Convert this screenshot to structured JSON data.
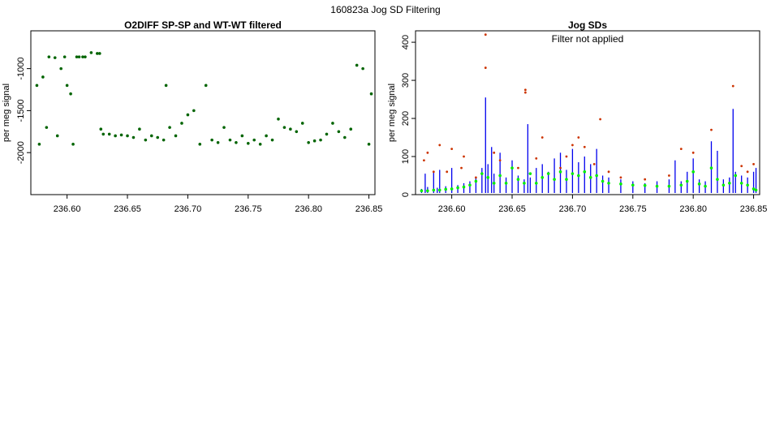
{
  "page": {
    "title": "160823a   Jog SD Filtering"
  },
  "colors": {
    "left_series": "#006400",
    "blue_series": "#0000ee",
    "green_series": "#00ee00",
    "points_series": "#cc3300"
  },
  "chart_data": [
    {
      "type": "scatter",
      "title": "O2DIFF SP-SP and WT-WT filtered",
      "xlabel": "",
      "ylabel": "per meg signal",
      "xlim": [
        236.57,
        236.855
      ],
      "ylim": [
        -2500,
        -550
      ],
      "x_ticks": [
        236.6,
        236.65,
        236.7,
        236.75,
        236.8,
        236.85
      ],
      "x_tick_labels": [
        "236.60",
        "236.65",
        "236.70",
        "236.75",
        "236.80",
        "236.85"
      ],
      "y_ticks": [
        -2000,
        -1500,
        -1000
      ],
      "y_tick_labels": [
        "-2000",
        "-1500",
        "-1000"
      ],
      "annotation": "",
      "grid": false,
      "series": [
        {
          "x": [
            236.575,
            236.577,
            236.58,
            236.583,
            236.585,
            236.59,
            236.592,
            236.595,
            236.598,
            236.6,
            236.603,
            236.605,
            236.608,
            236.61,
            236.613,
            236.615,
            236.62,
            236.625,
            236.627,
            236.628,
            236.63,
            236.635,
            236.64,
            236.645,
            236.65,
            236.655,
            236.66,
            236.665,
            236.67,
            236.675,
            236.68,
            236.682,
            236.685,
            236.69,
            236.695,
            236.7,
            236.705,
            236.71,
            236.715,
            236.72,
            236.725,
            236.73,
            236.735,
            236.74,
            236.745,
            236.75,
            236.755,
            236.76,
            236.765,
            236.77,
            236.775,
            236.78,
            236.785,
            236.79,
            236.795,
            236.8,
            236.805,
            236.81,
            236.815,
            236.82,
            236.825,
            236.83,
            236.835,
            236.84,
            236.845,
            236.85,
            236.852
          ],
          "y": [
            -1200,
            -1900,
            -1100,
            -1700,
            -860,
            -870,
            -1800,
            -1000,
            -860,
            -1200,
            -1300,
            -1900,
            -860,
            -860,
            -860,
            -860,
            -810,
            -820,
            -820,
            -1720,
            -1780,
            -1780,
            -1800,
            -1790,
            -1800,
            -1820,
            -1720,
            -1850,
            -1800,
            -1820,
            -1850,
            -1200,
            -1700,
            -1800,
            -1650,
            -1550,
            -1500,
            -1900,
            -1200,
            -1850,
            -1880,
            -1700,
            -1850,
            -1880,
            -1800,
            -1890,
            -1850,
            -1900,
            -1800,
            -1850,
            -1600,
            -1700,
            -1720,
            -1750,
            -1650,
            -1880,
            -1860,
            -1850,
            -1780,
            -1650,
            -1750,
            -1820,
            -1720,
            -960,
            -1000,
            -1900,
            -1300
          ]
        }
      ]
    },
    {
      "type": "line",
      "title": "Jog SDs",
      "xlabel": "",
      "ylabel": "per meg signal",
      "xlim": [
        236.57,
        236.855
      ],
      "ylim": [
        0,
        430
      ],
      "x_ticks": [
        236.6,
        236.65,
        236.7,
        236.75,
        236.8,
        236.85
      ],
      "x_tick_labels": [
        "236.60",
        "236.65",
        "236.70",
        "236.75",
        "236.80",
        "236.85"
      ],
      "y_ticks": [
        0,
        100,
        200,
        300,
        400
      ],
      "y_tick_labels": [
        "0",
        "100",
        "200",
        "300",
        "400"
      ],
      "annotation": "Filter not applied",
      "grid": false,
      "series": [
        {
          "style": "line",
          "color_key": "blue_series",
          "x": [
            236.575,
            236.578,
            236.58,
            236.585,
            236.588,
            236.59,
            236.595,
            236.6,
            236.605,
            236.61,
            236.615,
            236.62,
            236.625,
            236.628,
            236.63,
            236.633,
            236.635,
            236.64,
            236.645,
            236.65,
            236.655,
            236.66,
            236.663,
            236.665,
            236.67,
            236.675,
            236.68,
            236.685,
            236.69,
            236.695,
            236.7,
            236.705,
            236.71,
            236.715,
            236.72,
            236.725,
            236.73,
            236.74,
            236.75,
            236.76,
            236.77,
            236.78,
            236.785,
            236.79,
            236.795,
            236.8,
            236.805,
            236.81,
            236.815,
            236.82,
            236.825,
            236.83,
            236.833,
            236.835,
            236.84,
            236.845,
            236.85,
            236.852
          ],
          "y": [
            15,
            55,
            20,
            60,
            18,
            65,
            22,
            70,
            25,
            30,
            35,
            45,
            70,
            255,
            80,
            125,
            55,
            110,
            45,
            90,
            50,
            40,
            185,
            45,
            70,
            80,
            60,
            95,
            110,
            65,
            120,
            85,
            100,
            80,
            120,
            50,
            45,
            40,
            35,
            30,
            35,
            40,
            90,
            35,
            60,
            95,
            40,
            35,
            140,
            115,
            40,
            45,
            225,
            60,
            50,
            45,
            60,
            70
          ]
        },
        {
          "style": "points",
          "color_key": "green_series",
          "x": [
            236.575,
            236.58,
            236.585,
            236.59,
            236.595,
            236.6,
            236.605,
            236.61,
            236.615,
            236.62,
            236.625,
            236.63,
            236.635,
            236.64,
            236.645,
            236.65,
            236.655,
            236.66,
            236.665,
            236.67,
            236.675,
            236.68,
            236.685,
            236.69,
            236.695,
            236.7,
            236.705,
            236.71,
            236.715,
            236.72,
            236.725,
            236.73,
            236.74,
            236.75,
            236.76,
            236.77,
            236.78,
            236.79,
            236.795,
            236.8,
            236.805,
            236.81,
            236.815,
            236.82,
            236.825,
            236.83,
            236.835,
            236.84,
            236.845,
            236.85,
            236.852
          ],
          "y": [
            10,
            10,
            12,
            12,
            14,
            15,
            18,
            20,
            25,
            35,
            55,
            45,
            30,
            50,
            30,
            70,
            40,
            30,
            55,
            30,
            45,
            55,
            40,
            60,
            40,
            55,
            50,
            60,
            45,
            50,
            35,
            30,
            28,
            25,
            24,
            22,
            22,
            25,
            35,
            60,
            28,
            22,
            70,
            40,
            25,
            30,
            50,
            30,
            25,
            15,
            12
          ]
        },
        {
          "style": "points",
          "color_key": "points_series",
          "x": [
            236.577,
            236.58,
            236.585,
            236.59,
            236.596,
            236.6,
            236.608,
            236.61,
            236.62,
            236.628,
            236.628,
            236.635,
            236.64,
            236.655,
            236.661,
            236.661,
            236.67,
            236.675,
            236.69,
            236.695,
            236.7,
            236.705,
            236.71,
            236.718,
            236.723,
            236.73,
            236.74,
            236.76,
            236.78,
            236.79,
            236.8,
            236.815,
            236.833,
            236.84,
            236.845,
            236.85
          ],
          "y": [
            90,
            110,
            60,
            130,
            60,
            120,
            70,
            100,
            45,
            420,
            333,
            110,
            90,
            70,
            275,
            268,
            95,
            150,
            70,
            100,
            130,
            150,
            125,
            80,
            198,
            60,
            45,
            40,
            50,
            120,
            110,
            170,
            285,
            75,
            60,
            80
          ]
        }
      ]
    }
  ]
}
